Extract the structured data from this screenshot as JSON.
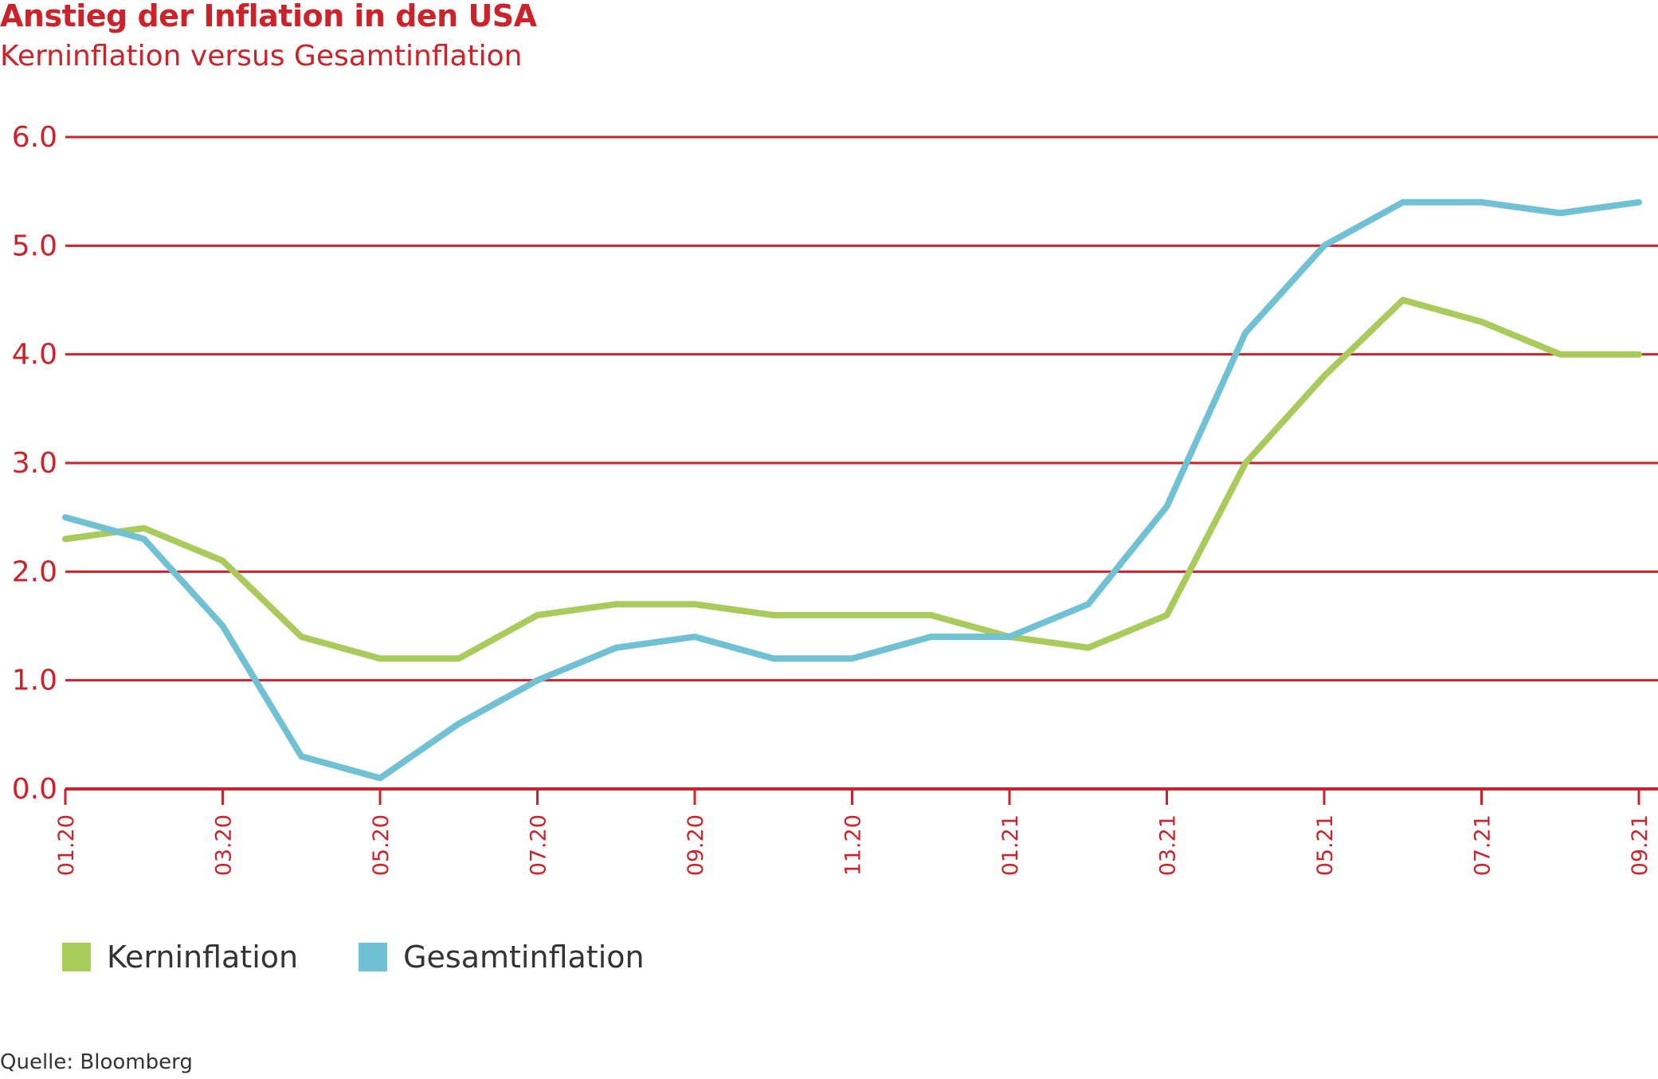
{
  "header": {
    "title": "Anstieg der Inflation in den USA",
    "subtitle": "Kerninflation versus Gesamtinflation"
  },
  "source": "Quelle: Bloomberg",
  "colors": {
    "accent": "#cc2229",
    "kern": "#a8cb5c",
    "gesamt": "#6fc1d3"
  },
  "chart_data": {
    "type": "line",
    "title": "Anstieg der Inflation in den USA",
    "subtitle": "Kerninflation versus Gesamtinflation",
    "xlabel": "",
    "ylabel": "",
    "ylim": [
      0,
      6
    ],
    "yticks": [
      "0.0",
      "1.0",
      "2.0",
      "3.0",
      "4.0",
      "5.0",
      "6.0"
    ],
    "x": [
      "01.20",
      "02.20",
      "03.20",
      "04.20",
      "05.20",
      "06.20",
      "07.20",
      "08.20",
      "09.20",
      "10.20",
      "11.20",
      "12.20",
      "01.21",
      "02.21",
      "03.21",
      "04.21",
      "05.21",
      "06.21",
      "07.21",
      "08.21",
      "09.21"
    ],
    "xtick_labels": [
      "01.20",
      "03.20",
      "05.20",
      "07.20",
      "09.20",
      "11.20",
      "01.21",
      "03.21",
      "05.21",
      "07.21",
      "09.21"
    ],
    "grid": true,
    "legend": "bottom-left",
    "series": [
      {
        "name": "Kerninflation",
        "color": "#a8cb5c",
        "values": [
          2.3,
          2.4,
          2.1,
          1.4,
          1.2,
          1.2,
          1.6,
          1.7,
          1.7,
          1.6,
          1.6,
          1.6,
          1.4,
          1.3,
          1.6,
          3.0,
          3.8,
          4.5,
          4.3,
          4.0,
          4.0
        ]
      },
      {
        "name": "Gesamtinflation",
        "color": "#6fc1d3",
        "values": [
          2.5,
          2.3,
          1.5,
          0.3,
          0.1,
          0.6,
          1.0,
          1.3,
          1.4,
          1.2,
          1.2,
          1.4,
          1.4,
          1.7,
          2.6,
          4.2,
          5.0,
          5.4,
          5.4,
          5.3,
          5.4
        ]
      }
    ]
  }
}
